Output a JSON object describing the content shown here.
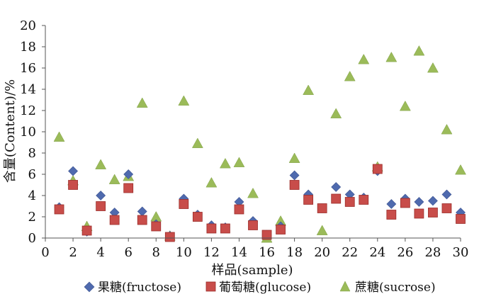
{
  "chart_data": {
    "type": "scatter",
    "title": "",
    "xlabel": "样品(sample)",
    "ylabel": "含量(Content)/%",
    "xlim": [
      0,
      30
    ],
    "ylim": [
      0,
      20
    ],
    "x_ticks": [
      0,
      2,
      4,
      6,
      8,
      10,
      12,
      14,
      16,
      18,
      20,
      22,
      24,
      26,
      28,
      30
    ],
    "y_ticks": [
      0,
      2,
      4,
      6,
      8,
      10,
      12,
      14,
      16,
      18,
      20
    ],
    "grid": false,
    "legend_position": "bottom",
    "x": [
      1,
      2,
      3,
      4,
      5,
      6,
      7,
      8,
      9,
      10,
      11,
      12,
      13,
      14,
      15,
      16,
      17,
      18,
      19,
      20,
      21,
      22,
      23,
      24,
      25,
      26,
      27,
      28,
      29,
      30
    ],
    "series": [
      {
        "name": "果糖(fructose)",
        "marker": "diamond",
        "color": "#4F6AAE",
        "values": [
          2.9,
          6.3,
          0.6,
          4.0,
          2.4,
          6.0,
          2.5,
          1.3,
          0.2,
          3.7,
          2.2,
          1.2,
          1.0,
          3.4,
          1.6,
          0.3,
          1.1,
          5.9,
          4.1,
          2.8,
          4.8,
          4.1,
          3.8,
          6.3,
          3.2,
          3.7,
          3.4,
          3.5,
          4.1,
          2.4
        ]
      },
      {
        "name": "葡萄糖(glucose)",
        "marker": "square",
        "color": "#C84D4A",
        "values": [
          2.7,
          5.0,
          0.7,
          3.0,
          1.7,
          4.7,
          1.7,
          1.1,
          0.1,
          3.2,
          2.0,
          0.9,
          0.9,
          2.7,
          1.2,
          0.3,
          0.8,
          5.0,
          3.6,
          2.8,
          3.7,
          3.4,
          3.6,
          6.5,
          2.2,
          3.3,
          2.3,
          2.4,
          2.8,
          1.8
        ]
      },
      {
        "name": "蔗糖(sucrose)",
        "marker": "triangle",
        "color": "#9BBB59",
        "values": [
          9.5,
          5.4,
          1.1,
          6.9,
          5.5,
          5.8,
          12.7,
          2.0,
          0.2,
          12.9,
          8.9,
          5.2,
          7.0,
          7.1,
          4.2,
          0.0,
          1.6,
          7.5,
          13.9,
          0.7,
          11.7,
          15.2,
          16.8,
          6.7,
          17.0,
          12.4,
          17.6,
          16.0,
          10.2,
          6.4
        ]
      }
    ]
  }
}
